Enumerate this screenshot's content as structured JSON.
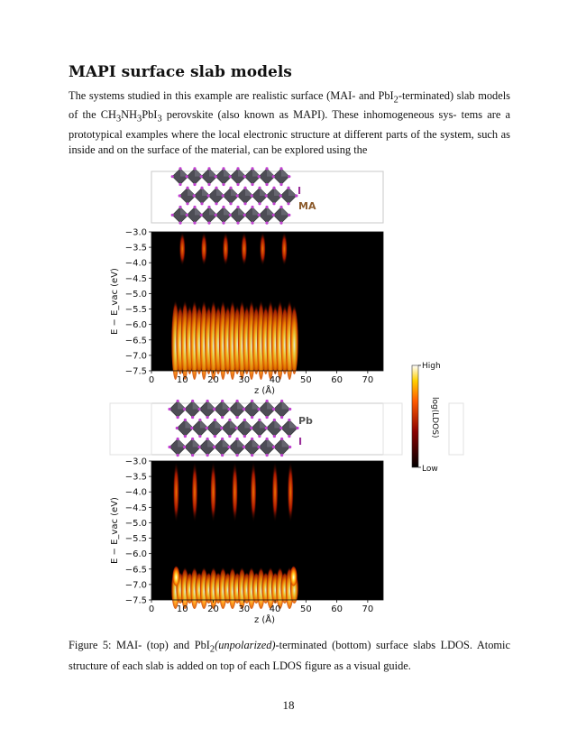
{
  "section": {
    "title": "MAPI surface slab models"
  },
  "paragraph": {
    "line1": "The systems studied in this example are realistic surface (MAI- and PbI",
    "line1_sub": "2",
    "line1_end": "-terminated) slab",
    "line2a": "models of the CH",
    "line2_sub1": "3",
    "line2b": "NH",
    "line2_sub2": "3",
    "line2c": "PbI",
    "line2_sub3": "3",
    "line2d": " perovskite (also known as MAPI). These inhomogeneous sys-",
    "line3": "tems are a prototypical examples where the local electronic structure at different parts of",
    "line4": "the system, such as inside and on the surface of the material, can be explored using the"
  },
  "figure": {
    "top_labels": {
      "iodine": "I",
      "ma": "MA"
    },
    "bottom_labels": {
      "lead": "Pb",
      "iodine": "I"
    },
    "colorbar": {
      "high": "High",
      "low": "Low",
      "label": "log(LDOS)"
    },
    "colors": {
      "background": "#000000",
      "hot_low": "#7a0a00",
      "hot_mid": "#ff6a00",
      "hot_high": "#ffffe0",
      "octahedra": "#4d4d55",
      "iodine_atom": "#c040d0",
      "label_brown": "#8b5a2b",
      "label_purple": "#9a2e9a"
    }
  },
  "chart_data": [
    {
      "type": "heatmap",
      "title": "",
      "xlabel": "z (Å)",
      "ylabel": "E − E_vac (eV)",
      "xlim": [
        0,
        75
      ],
      "ylim": [
        -7.5,
        -3.0
      ],
      "xticks": [
        "0",
        "10",
        "20",
        "30",
        "40",
        "50",
        "60",
        "70"
      ],
      "yticks": [
        "−3.0",
        "−3.5",
        "−4.0",
        "−4.5",
        "−5.0",
        "−5.5",
        "−6.0",
        "−6.5",
        "−7.0",
        "−7.5"
      ],
      "conduction_band_columns_z": [
        10,
        17,
        24,
        30,
        36,
        43
      ],
      "conduction_band_energy": [
        -3.0,
        -4.1
      ],
      "valence_band_z_range": [
        7,
        47
      ],
      "valence_band_top_eV": -5.0
    },
    {
      "type": "heatmap",
      "title": "",
      "xlabel": "z (Å)",
      "ylabel": "E − E_vac (eV)",
      "xlim": [
        0,
        75
      ],
      "ylim": [
        -7.5,
        -3.0
      ],
      "xticks": [
        "0",
        "10",
        "20",
        "30",
        "40",
        "50",
        "60",
        "70"
      ],
      "yticks": [
        "−3.0",
        "−3.5",
        "−4.0",
        "−4.5",
        "−5.0",
        "−5.5",
        "−6.0",
        "−6.5",
        "−7.0",
        "−7.5"
      ],
      "conduction_band_columns_z": [
        8,
        14,
        20,
        27,
        33,
        40,
        45
      ],
      "conduction_band_energy": [
        -3.0,
        -5.0
      ],
      "valence_band_z_range": [
        7,
        47
      ],
      "valence_band_top_eV": -6.3,
      "surface_states_z": [
        8,
        46
      ]
    }
  ],
  "page": {
    "number": "18"
  },
  "caption": {
    "label": "Figure 5:",
    "text_a": " MAI- (top) and PbI",
    "sub": "2",
    "italic": "(unpolarized)",
    "text_b": "-terminated (bottom) surface slabs LDOS. Atomic structure of each slab is added on top of each LDOS figure as a visual guide."
  }
}
